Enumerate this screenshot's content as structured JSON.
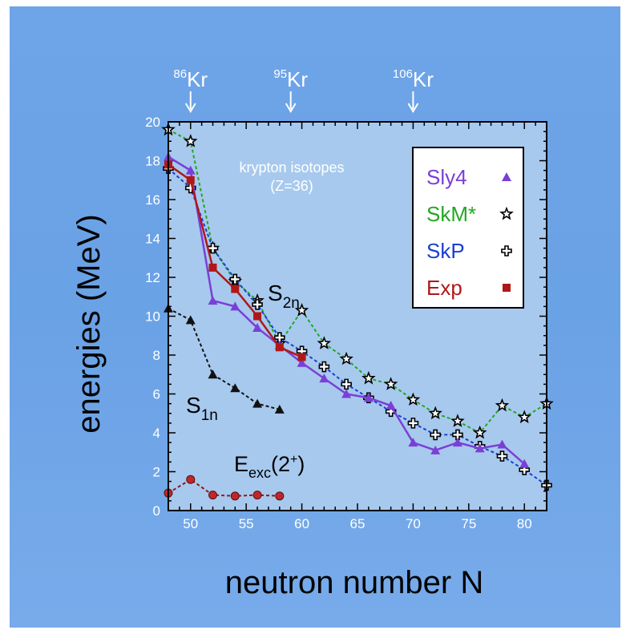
{
  "chart_data": {
    "type": "line",
    "title": "",
    "xlabel": "neutron number N",
    "ylabel": "energies (MeV)",
    "xlim": [
      48,
      82
    ],
    "ylim": [
      0,
      20
    ],
    "x_ticks": [
      50,
      55,
      60,
      65,
      70,
      75,
      80
    ],
    "y_ticks": [
      0,
      2,
      4,
      6,
      8,
      10,
      12,
      14,
      16,
      18,
      20
    ],
    "top_markers": [
      {
        "mass": "86",
        "element": "Kr",
        "n": 50
      },
      {
        "mass": "95",
        "element": "Kr",
        "n": 59
      },
      {
        "mass": "106",
        "element": "Kr",
        "n": 70
      }
    ],
    "annotations": {
      "isotopes_line1": "krypton isotopes",
      "isotopes_line2": "(Z=36)",
      "s2n": {
        "main": "S",
        "sub": "2n"
      },
      "s1n": {
        "main": "S",
        "sub": "1n"
      },
      "eexc": {
        "main": "E",
        "sub": "exc",
        "tail": "(2",
        "sup": "+",
        "close": ")"
      }
    },
    "legend": {
      "position": "top-right",
      "entries": [
        {
          "label": "Sly4",
          "color": "#7a3fd6",
          "marker": "triangle"
        },
        {
          "label": "SkM*",
          "color": "#22a822",
          "marker": "star"
        },
        {
          "label": "SkP",
          "color": "#1a3fcf",
          "marker": "cross"
        },
        {
          "label": "Exp",
          "color": "#b01818",
          "marker": "square"
        }
      ]
    },
    "series": [
      {
        "group": "S2n",
        "label": "Sly4",
        "color": "#7a3fd6",
        "marker": "triangle",
        "dash": false,
        "line_width": 2.5,
        "points": [
          [
            48,
            18.2
          ],
          [
            50,
            17.5
          ],
          [
            52,
            10.8
          ],
          [
            54,
            10.5
          ],
          [
            56,
            9.4
          ],
          [
            58,
            8.5
          ],
          [
            60,
            7.6
          ],
          [
            62,
            6.8
          ],
          [
            64,
            6.0
          ],
          [
            66,
            5.8
          ],
          [
            68,
            5.4
          ],
          [
            70,
            3.5
          ],
          [
            72,
            3.1
          ],
          [
            74,
            3.5
          ],
          [
            76,
            3.2
          ],
          [
            78,
            3.4
          ],
          [
            80,
            2.4
          ]
        ]
      },
      {
        "group": "S2n",
        "label": "SkM*",
        "color": "#22a822",
        "marker": "star",
        "dash": true,
        "line_width": 2,
        "points": [
          [
            48,
            19.6
          ],
          [
            50,
            19.0
          ],
          [
            52,
            13.5
          ],
          [
            54,
            11.8
          ],
          [
            56,
            10.8
          ],
          [
            58,
            8.6
          ],
          [
            60,
            10.3
          ],
          [
            62,
            8.6
          ],
          [
            64,
            7.8
          ],
          [
            66,
            6.8
          ],
          [
            68,
            6.5
          ],
          [
            70,
            5.7
          ],
          [
            72,
            5.0
          ],
          [
            74,
            4.6
          ],
          [
            76,
            4.0
          ],
          [
            78,
            5.4
          ],
          [
            80,
            4.8
          ],
          [
            82,
            5.5
          ]
        ]
      },
      {
        "group": "S2n",
        "label": "SkP",
        "color": "#1a3fcf",
        "marker": "cross",
        "dash": true,
        "line_width": 2,
        "points": [
          [
            48,
            17.6
          ],
          [
            50,
            16.6
          ],
          [
            52,
            13.5
          ],
          [
            54,
            11.9
          ],
          [
            56,
            10.6
          ],
          [
            58,
            8.9
          ],
          [
            60,
            8.2
          ],
          [
            62,
            7.4
          ],
          [
            64,
            6.5
          ],
          [
            66,
            5.8
          ],
          [
            68,
            5.1
          ],
          [
            70,
            4.5
          ],
          [
            72,
            3.9
          ],
          [
            74,
            3.9
          ],
          [
            76,
            3.3
          ],
          [
            78,
            2.8
          ],
          [
            80,
            2.1
          ],
          [
            82,
            1.3
          ]
        ]
      },
      {
        "group": "S2n",
        "label": "Exp",
        "color": "#b01818",
        "marker": "square",
        "dash": false,
        "line_width": 2.5,
        "points": [
          [
            48,
            17.8
          ],
          [
            50,
            17.0
          ],
          [
            52,
            12.5
          ],
          [
            54,
            11.4
          ],
          [
            56,
            10.0
          ],
          [
            58,
            8.4
          ],
          [
            60,
            7.9
          ]
        ]
      },
      {
        "group": "S1n",
        "label": "S1n",
        "color": "#111111",
        "marker": "triangle-black",
        "dash": true,
        "line_width": 2,
        "points": [
          [
            48,
            10.4
          ],
          [
            50,
            9.8
          ],
          [
            52,
            7.0
          ],
          [
            54,
            6.3
          ],
          [
            56,
            5.5
          ],
          [
            58,
            5.2
          ]
        ]
      },
      {
        "group": "Eexc",
        "label": "Eexc(2+)",
        "color": "#111111",
        "marker": "circle-red",
        "dash": true,
        "line_width": 2,
        "points": [
          [
            48,
            0.9
          ],
          [
            50,
            1.6
          ],
          [
            52,
            0.8
          ],
          [
            54,
            0.75
          ],
          [
            56,
            0.8
          ],
          [
            58,
            0.75
          ]
        ]
      }
    ]
  }
}
